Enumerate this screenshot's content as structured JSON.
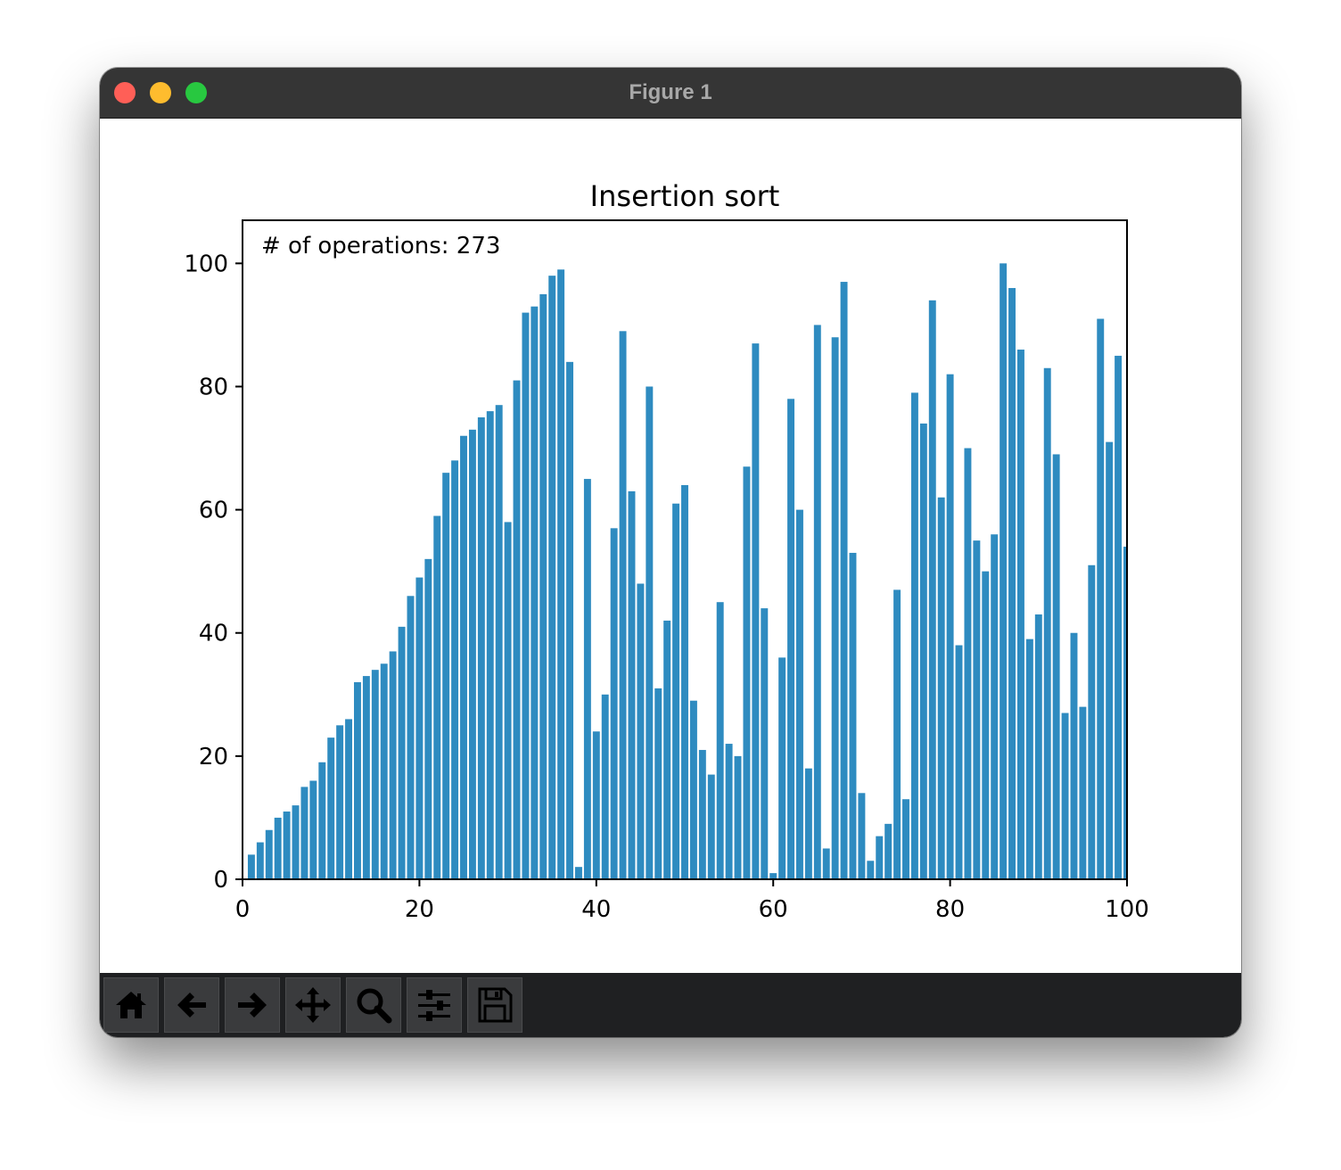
{
  "window": {
    "title": "Figure 1"
  },
  "toolbar": {
    "buttons": [
      {
        "name": "home-button",
        "icon": "home-icon"
      },
      {
        "name": "back-button",
        "icon": "arrow-left-icon"
      },
      {
        "name": "forward-button",
        "icon": "arrow-right-icon"
      },
      {
        "name": "pan-button",
        "icon": "move-icon"
      },
      {
        "name": "zoom-button",
        "icon": "magnifier-icon"
      },
      {
        "name": "configure-subplots-button",
        "icon": "sliders-icon"
      },
      {
        "name": "save-button",
        "icon": "floppy-disk-icon"
      }
    ]
  },
  "chart_data": {
    "type": "bar",
    "title": "Insertion sort",
    "annotation": "# of operations: 273",
    "xlabel": "",
    "ylabel": "",
    "xlim": [
      0,
      100
    ],
    "ylim": [
      0,
      107
    ],
    "xticks": [
      0,
      20,
      40,
      60,
      80,
      100
    ],
    "yticks": [
      0,
      20,
      40,
      60,
      80,
      100
    ],
    "x": [
      1,
      2,
      3,
      4,
      5,
      6,
      7,
      8,
      9,
      10,
      11,
      12,
      13,
      14,
      15,
      16,
      17,
      18,
      19,
      20,
      21,
      22,
      23,
      24,
      25,
      26,
      27,
      28,
      29,
      30,
      31,
      32,
      33,
      34,
      35,
      36,
      37,
      38,
      39,
      40,
      41,
      42,
      43,
      44,
      45,
      46,
      47,
      48,
      49,
      50,
      51,
      52,
      53,
      54,
      55,
      56,
      57,
      58,
      59,
      60,
      61,
      62,
      63,
      64,
      65,
      66,
      67,
      68,
      69,
      70,
      71,
      72,
      73,
      74,
      75,
      76,
      77,
      78,
      79,
      80,
      81,
      82,
      83,
      84,
      85,
      86,
      87,
      88,
      89,
      90,
      91,
      92,
      93,
      94,
      95,
      96,
      97,
      98,
      99,
      100
    ],
    "values": [
      4,
      6,
      8,
      10,
      11,
      12,
      15,
      16,
      19,
      23,
      25,
      26,
      32,
      33,
      34,
      35,
      37,
      41,
      46,
      49,
      52,
      59,
      66,
      68,
      72,
      73,
      75,
      76,
      77,
      58,
      81,
      92,
      93,
      95,
      98,
      99,
      84,
      2,
      65,
      24,
      30,
      57,
      89,
      63,
      48,
      80,
      31,
      42,
      61,
      64,
      29,
      21,
      17,
      45,
      22,
      20,
      67,
      87,
      44,
      1,
      36,
      78,
      60,
      18,
      90,
      5,
      88,
      97,
      53,
      14,
      3,
      7,
      9,
      47,
      13,
      79,
      74,
      94,
      62,
      82,
      38,
      70,
      55,
      50,
      56,
      100,
      96,
      86,
      39,
      43,
      83,
      69,
      27,
      40,
      28,
      51,
      91,
      71,
      85,
      54
    ],
    "bar_color": "#2e8bc0",
    "grid": false
  }
}
